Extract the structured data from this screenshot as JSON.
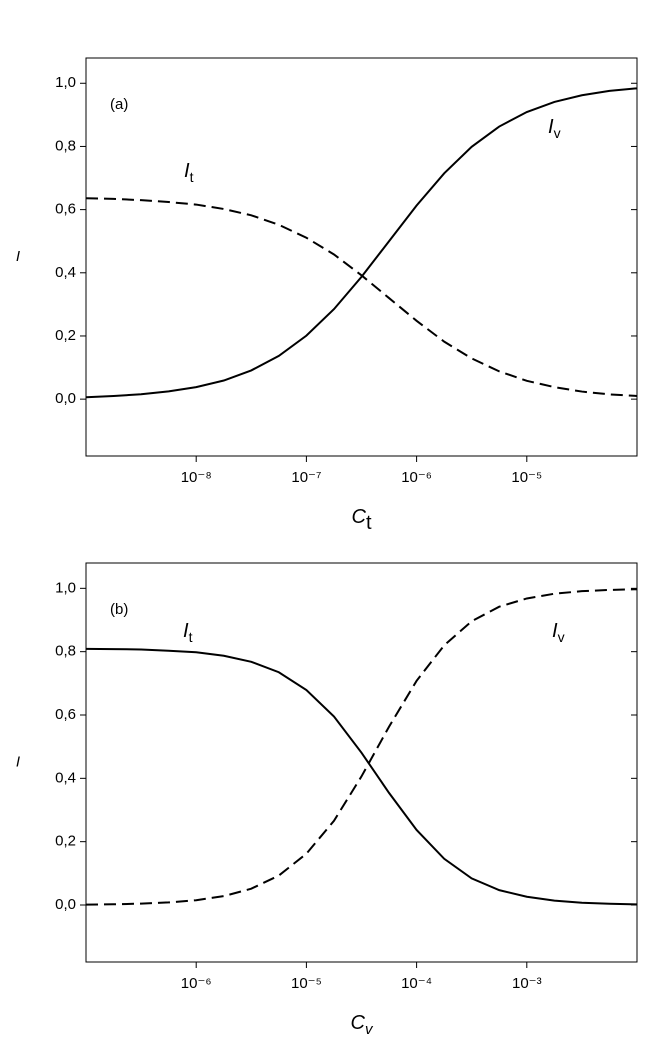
{
  "chart_data": [
    {
      "type": "line",
      "xscale": "log",
      "grid": false,
      "xlabel": {
        "text": "C",
        "subscript": "t"
      },
      "ylabel": "I",
      "xlim": [
        1e-09,
        0.0001
      ],
      "ylim": [
        -0.18,
        1.08
      ],
      "xticks": [
        {
          "value": 1e-08,
          "label": "10⁻⁸"
        },
        {
          "value": 1e-07,
          "label": "10⁻⁷"
        },
        {
          "value": 1e-06,
          "label": "10⁻⁶"
        },
        {
          "value": 1e-05,
          "label": "10⁻⁵"
        }
      ],
      "yticks": [
        {
          "value": 0,
          "label": "0,0"
        },
        {
          "value": 0.2,
          "label": "0,2"
        },
        {
          "value": 0.4,
          "label": "0,4"
        },
        {
          "value": 0.6,
          "label": "0,6"
        },
        {
          "value": 0.8,
          "label": "0,8"
        },
        {
          "value": 1,
          "label": "1,0"
        }
      ],
      "annotations": [
        {
          "text": "(a)"
        },
        {
          "text": "I",
          "subscript": "t"
        },
        {
          "text": "I",
          "subscript": "v"
        }
      ],
      "x": [
        1e-09,
        1.78e-09,
        3.16e-09,
        5.62e-09,
        1e-08,
        1.78e-08,
        3.16e-08,
        5.62e-08,
        1e-07,
        1.78e-07,
        3.16e-07,
        5.62e-07,
        1e-06,
        1.78e-06,
        3.16e-06,
        5.62e-06,
        1e-05,
        1.78e-05,
        3.16e-05,
        5.62e-05,
        0.0001
      ],
      "series": [
        {
          "style": "solid",
          "color": "#000000",
          "values": [
            0.006,
            0.0099,
            0.0156,
            0.0245,
            0.038,
            0.059,
            0.091,
            0.137,
            0.201,
            0.285,
            0.387,
            0.5,
            0.613,
            0.715,
            0.799,
            0.863,
            0.909,
            0.941,
            0.962,
            0.976,
            0.984
          ]
        },
        {
          "style": "dashed",
          "color": "#000000",
          "values": [
            0.636,
            0.634,
            0.63,
            0.624,
            0.616,
            0.602,
            0.582,
            0.552,
            0.511,
            0.458,
            0.392,
            0.32,
            0.248,
            0.182,
            0.129,
            0.088,
            0.058,
            0.038,
            0.024,
            0.015,
            0.01
          ]
        }
      ]
    },
    {
      "type": "line",
      "xscale": "log",
      "grid": false,
      "xlabel": {
        "text": "C",
        "subscript": "v"
      },
      "ylabel": "I",
      "xlim": [
        1e-07,
        0.01
      ],
      "ylim": [
        -0.18,
        1.08
      ],
      "xticks": [
        {
          "value": 1e-06,
          "label": "10⁻⁶"
        },
        {
          "value": 1e-05,
          "label": "10⁻⁵"
        },
        {
          "value": 0.0001,
          "label": "10⁻⁴"
        },
        {
          "value": 0.001,
          "label": "10⁻³"
        }
      ],
      "yticks": [
        {
          "value": 0,
          "label": "0,0"
        },
        {
          "value": 0.2,
          "label": "0,2"
        },
        {
          "value": 0.4,
          "label": "0,4"
        },
        {
          "value": 0.6,
          "label": "0,6"
        },
        {
          "value": 0.8,
          "label": "0,8"
        },
        {
          "value": 1,
          "label": "1,0"
        }
      ],
      "annotations": [
        {
          "text": "(b)"
        },
        {
          "text": "I",
          "subscript": "t"
        },
        {
          "text": "I",
          "subscript": "v"
        }
      ],
      "x": [
        1e-07,
        1.78e-07,
        3.16e-07,
        5.62e-07,
        1e-06,
        1.78e-06,
        3.16e-06,
        5.62e-06,
        1e-05,
        1.78e-05,
        3.16e-05,
        5.62e-05,
        0.0001,
        0.000178,
        0.000316,
        0.000562,
        0.001,
        0.00178,
        0.00316,
        0.00562,
        0.01
      ],
      "series": [
        {
          "style": "solid",
          "color": "#000000",
          "values": [
            0.809,
            0.808,
            0.807,
            0.803,
            0.798,
            0.787,
            0.768,
            0.735,
            0.679,
            0.595,
            0.481,
            0.354,
            0.237,
            0.146,
            0.084,
            0.047,
            0.026,
            0.014,
            0.007,
            0.004,
            0.002
          ]
        },
        {
          "style": "dashed",
          "color": "#000000",
          "values": [
            0.0012,
            0.0023,
            0.0043,
            0.0081,
            0.0151,
            0.028,
            0.0515,
            0.093,
            0.162,
            0.266,
            0.406,
            0.563,
            0.708,
            0.82,
            0.896,
            0.942,
            0.968,
            0.983,
            0.991,
            0.995,
            0.997
          ]
        }
      ]
    }
  ]
}
